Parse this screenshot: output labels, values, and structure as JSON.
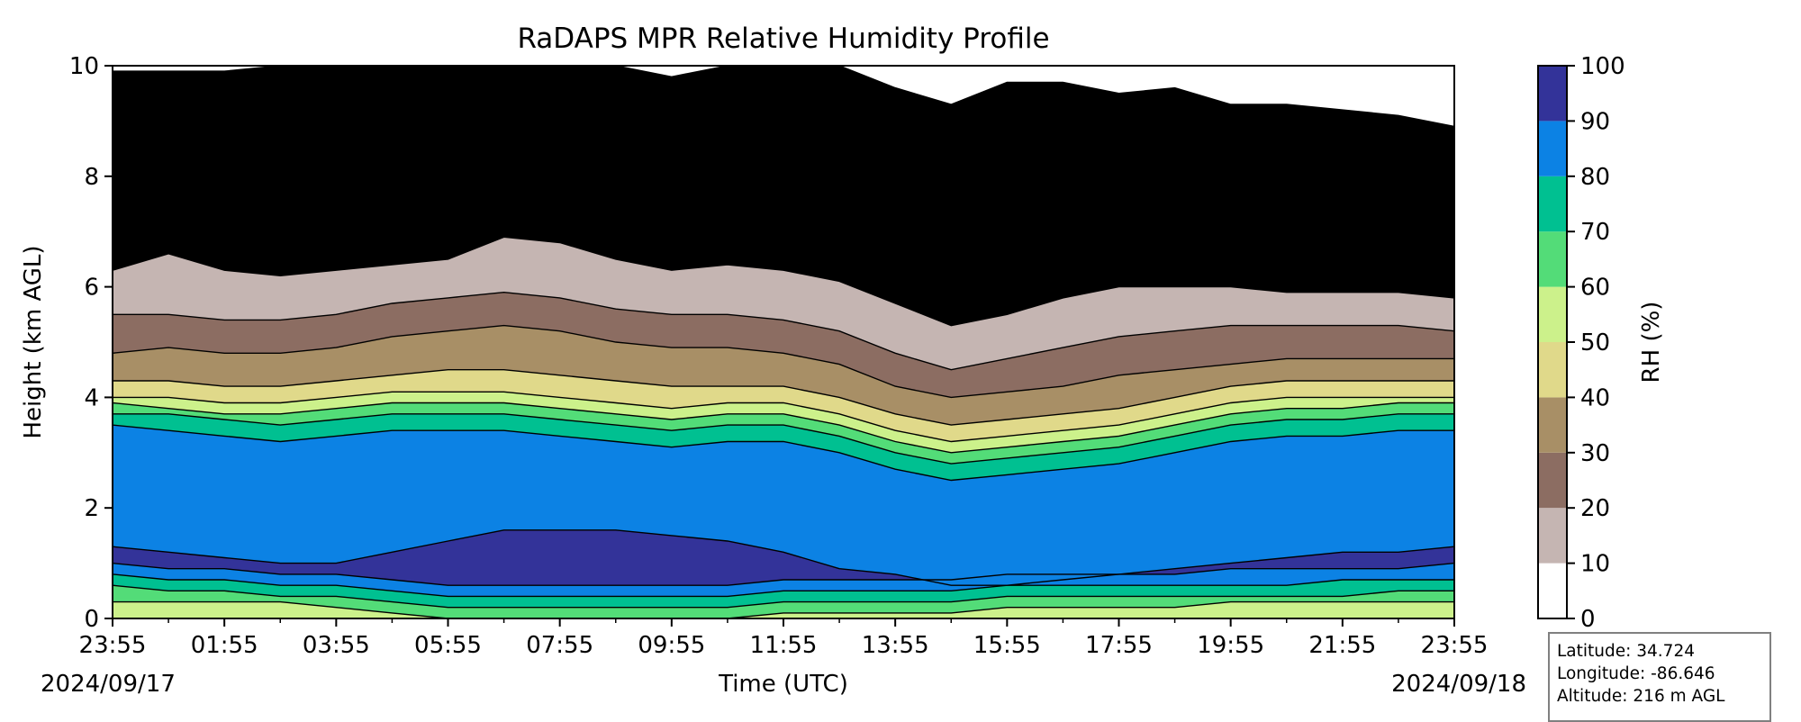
{
  "chart_data": {
    "type": "heatmap",
    "title": "RaDAPS MPR Relative Humidity Profile",
    "xlabel": "Time (UTC)",
    "ylabel": "Height (km AGL)",
    "colorbar_label": "RH (%)",
    "ylim": [
      0,
      10
    ],
    "yticks": [
      "0",
      "2",
      "4",
      "6",
      "8",
      "10"
    ],
    "xticks": [
      "23:55",
      "01:55",
      "03:55",
      "05:55",
      "07:55",
      "09:55",
      "11:55",
      "13:55",
      "15:55",
      "17:55",
      "19:55",
      "21:55",
      "23:55"
    ],
    "start_date": "2024/09/17",
    "end_date": "2024/09/18",
    "colorbar_ticks": [
      "0",
      "10",
      "20",
      "30",
      "40",
      "50",
      "60",
      "70",
      "80",
      "90",
      "100"
    ],
    "levels": [
      0,
      10,
      20,
      30,
      40,
      50,
      60,
      70,
      80,
      90,
      100
    ],
    "colors": [
      "#ffffff",
      "#c5b5b2",
      "#8c6d62",
      "#a88f66",
      "#e0d98a",
      "#ccf18b",
      "#53dc78",
      "#00c091",
      "#0c82e4",
      "#333399"
    ],
    "hours": [
      0,
      1,
      2,
      3,
      4,
      5,
      6,
      7,
      8,
      9,
      10,
      11,
      12,
      13,
      14,
      15,
      16,
      17,
      18,
      19,
      20,
      21,
      22,
      23,
      24
    ],
    "boundaries_km": [
      [
        0.3,
        0.3,
        0.3,
        0.3,
        0.2,
        0.1,
        0.0,
        0.0,
        0.0,
        0.0,
        0.0,
        0.0,
        0.1,
        0.1,
        0.1,
        0.1,
        0.2,
        0.2,
        0.2,
        0.2,
        0.3,
        0.3,
        0.3,
        0.3,
        0.3
      ],
      [
        0.6,
        0.5,
        0.5,
        0.4,
        0.4,
        0.3,
        0.2,
        0.2,
        0.2,
        0.2,
        0.2,
        0.2,
        0.3,
        0.3,
        0.3,
        0.3,
        0.4,
        0.4,
        0.4,
        0.4,
        0.4,
        0.4,
        0.4,
        0.5,
        0.5
      ],
      [
        0.8,
        0.7,
        0.7,
        0.6,
        0.6,
        0.5,
        0.4,
        0.4,
        0.4,
        0.4,
        0.4,
        0.4,
        0.5,
        0.5,
        0.5,
        0.5,
        0.6,
        0.6,
        0.6,
        0.6,
        0.6,
        0.6,
        0.7,
        0.7,
        0.7
      ],
      [
        1.0,
        0.9,
        0.9,
        0.8,
        0.8,
        0.7,
        0.6,
        0.6,
        0.6,
        0.6,
        0.6,
        0.6,
        0.7,
        0.7,
        0.7,
        0.7,
        0.8,
        0.8,
        0.8,
        0.8,
        0.9,
        0.9,
        0.9,
        0.9,
        1.0
      ],
      [
        1.3,
        1.2,
        1.1,
        1.0,
        1.0,
        1.2,
        1.4,
        1.6,
        1.6,
        1.6,
        1.5,
        1.4,
        1.2,
        0.9,
        0.8,
        0.6,
        0.6,
        0.7,
        0.8,
        0.9,
        1.0,
        1.1,
        1.2,
        1.2,
        1.3
      ],
      [
        3.5,
        3.4,
        3.3,
        3.2,
        3.3,
        3.4,
        3.4,
        3.4,
        3.3,
        3.2,
        3.1,
        3.2,
        3.2,
        3.0,
        2.7,
        2.5,
        2.6,
        2.7,
        2.8,
        3.0,
        3.2,
        3.3,
        3.3,
        3.4,
        3.4
      ],
      [
        3.7,
        3.7,
        3.6,
        3.5,
        3.6,
        3.7,
        3.7,
        3.7,
        3.6,
        3.5,
        3.4,
        3.5,
        3.5,
        3.3,
        3.0,
        2.8,
        2.9,
        3.0,
        3.1,
        3.3,
        3.5,
        3.6,
        3.6,
        3.7,
        3.7
      ],
      [
        3.9,
        3.8,
        3.7,
        3.7,
        3.8,
        3.9,
        3.9,
        3.9,
        3.8,
        3.7,
        3.6,
        3.7,
        3.7,
        3.5,
        3.2,
        3.0,
        3.1,
        3.2,
        3.3,
        3.5,
        3.7,
        3.8,
        3.8,
        3.9,
        3.9
      ],
      [
        4.0,
        4.0,
        3.9,
        3.9,
        4.0,
        4.1,
        4.1,
        4.1,
        4.0,
        3.9,
        3.8,
        3.9,
        3.9,
        3.7,
        3.4,
        3.2,
        3.3,
        3.4,
        3.5,
        3.7,
        3.9,
        4.0,
        4.0,
        4.0,
        4.0
      ],
      [
        4.3,
        4.3,
        4.2,
        4.2,
        4.3,
        4.4,
        4.5,
        4.5,
        4.4,
        4.3,
        4.2,
        4.2,
        4.2,
        4.0,
        3.7,
        3.5,
        3.6,
        3.7,
        3.8,
        4.0,
        4.2,
        4.3,
        4.3,
        4.3,
        4.3
      ],
      [
        4.8,
        4.9,
        4.8,
        4.8,
        4.9,
        5.1,
        5.2,
        5.3,
        5.2,
        5.0,
        4.9,
        4.9,
        4.8,
        4.6,
        4.2,
        4.0,
        4.1,
        4.2,
        4.4,
        4.5,
        4.6,
        4.7,
        4.7,
        4.7,
        4.7
      ],
      [
        5.5,
        5.5,
        5.4,
        5.4,
        5.5,
        5.7,
        5.8,
        5.9,
        5.8,
        5.6,
        5.5,
        5.5,
        5.4,
        5.2,
        4.8,
        4.5,
        4.7,
        4.9,
        5.1,
        5.2,
        5.3,
        5.3,
        5.3,
        5.3,
        5.2
      ],
      [
        6.3,
        6.6,
        6.3,
        6.2,
        6.3,
        6.4,
        6.5,
        6.9,
        6.8,
        6.5,
        6.3,
        6.4,
        6.3,
        6.1,
        5.7,
        5.3,
        5.5,
        5.8,
        6.0,
        6.0,
        6.0,
        5.9,
        5.9,
        5.9,
        5.8
      ],
      [
        9.9,
        9.9,
        9.9,
        10.0,
        10.0,
        10.0,
        10.0,
        10.0,
        10.0,
        10.0,
        9.8,
        10.0,
        10.0,
        10.0,
        9.6,
        9.3,
        9.7,
        9.7,
        9.5,
        9.6,
        9.3,
        9.3,
        9.2,
        9.1,
        8.9
      ]
    ],
    "boundary_levels": [
      60,
      70,
      80,
      90,
      90,
      80,
      70,
      60,
      50,
      40,
      30,
      20,
      10
    ],
    "boundary_level_note": ""
  },
  "station": {
    "latitude": "Latitude: 34.724",
    "longitude": "Longitude: -86.646",
    "altitude": "Altitude: 216 m AGL"
  }
}
